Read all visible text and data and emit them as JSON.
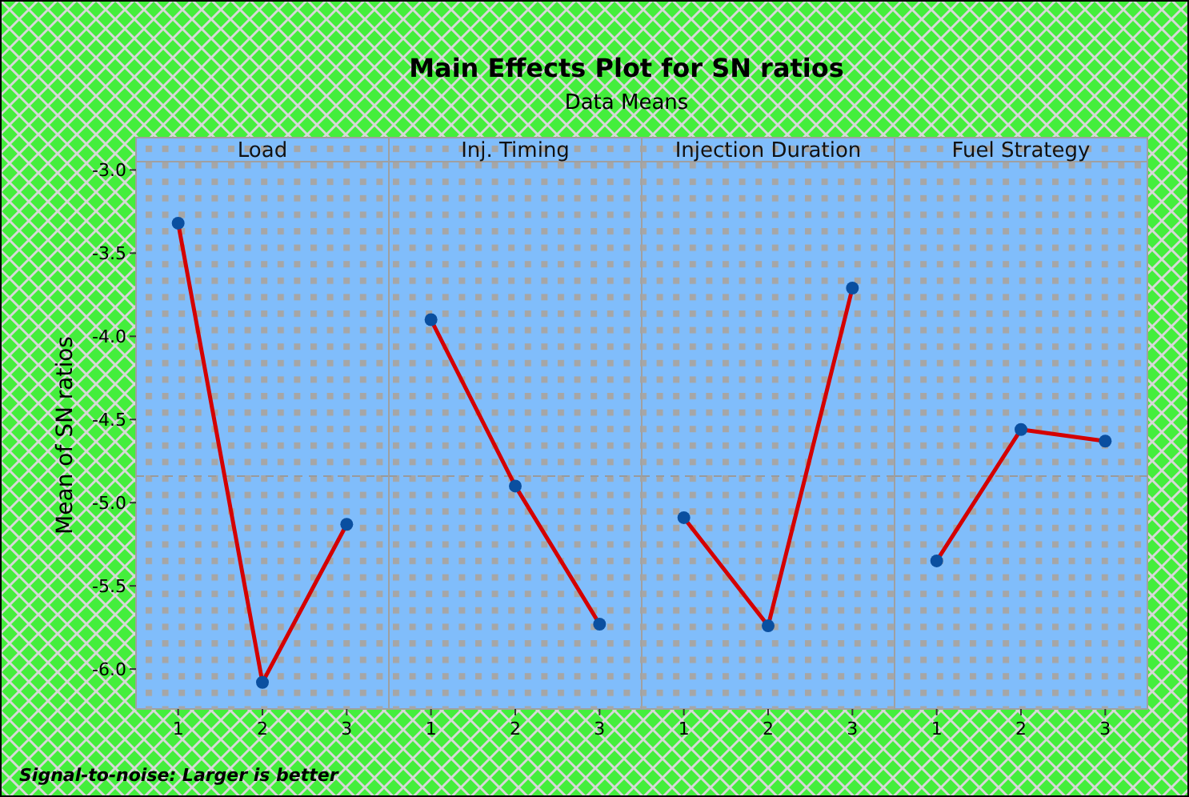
{
  "chart_data": [
    {
      "type": "other",
      "title": "Main Effects Plot for SN ratios",
      "subtitle": "Data Means",
      "annotations": [
        "Signal-to-noise: Larger is better"
      ]
    },
    {
      "type": "line",
      "title": "Load",
      "ylabel": "Mean of SN ratios",
      "categories": [
        "1",
        "2",
        "3"
      ],
      "series": [
        {
          "color": "#d40000",
          "values": [
            -3.32,
            -6.08,
            -5.13
          ]
        }
      ],
      "ylim": [
        -6.24,
        -2.95
      ],
      "yticks": [
        {
          "value": -3,
          "label": "-3.0"
        },
        {
          "value": -3.5,
          "label": "-3.5"
        },
        {
          "value": -4,
          "label": "-4.0"
        },
        {
          "value": -4.5,
          "label": "-4.5"
        },
        {
          "value": -5,
          "label": "-5.0"
        },
        {
          "value": -5.5,
          "label": "-5.5"
        },
        {
          "value": -6,
          "label": "-6.0"
        }
      ],
      "marker": "circle",
      "ref_lines": [
        {
          "axis": "y",
          "value": -4.84,
          "line_style": "dashed"
        }
      ]
    },
    {
      "type": "line",
      "title": "Inj. Timing",
      "categories": [
        "1",
        "2",
        "3"
      ],
      "series": [
        {
          "color": "#d40000",
          "values": [
            -3.9,
            -4.9,
            -5.73
          ]
        }
      ],
      "ylim": [
        -6.24,
        -2.95
      ],
      "tick_labels": "x",
      "marker": "circle",
      "ref_lines": [
        {
          "axis": "y",
          "value": -4.84,
          "line_style": "dashed"
        }
      ]
    },
    {
      "type": "line",
      "title": "Injection Duration",
      "categories": [
        "1",
        "2",
        "3"
      ],
      "series": [
        {
          "color": "#d40000",
          "values": [
            -5.09,
            -5.74,
            -3.71
          ]
        }
      ],
      "ylim": [
        -6.24,
        -2.95
      ],
      "tick_labels": "x",
      "marker": "circle",
      "ref_lines": [
        {
          "axis": "y",
          "value": -4.84,
          "line_style": "dashed"
        }
      ]
    },
    {
      "type": "line",
      "title": "Fuel Strategy",
      "categories": [
        "1",
        "2",
        "3"
      ],
      "series": [
        {
          "color": "#d40000",
          "values": [
            -5.35,
            -4.56,
            -4.63
          ]
        }
      ],
      "ylim": [
        -6.24,
        -2.95
      ],
      "tick_labels": "x",
      "marker": "circle",
      "ref_lines": [
        {
          "axis": "y",
          "value": -4.84,
          "line_style": "dashed"
        }
      ]
    }
  ]
}
